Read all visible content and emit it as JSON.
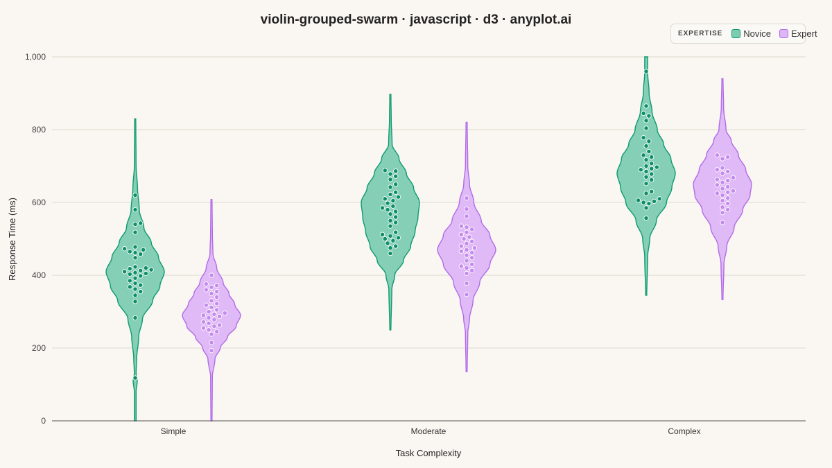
{
  "title": "violin-grouped-swarm · javascript · d3 · anyplot.ai",
  "colors": {
    "background": "#FAF7F2",
    "grid": "#DCD8CF",
    "axis": "#555555",
    "novice_fill": "#7DCCB2",
    "novice_stroke": "#0E9A70",
    "novice_dot": "#0E8F68",
    "expert_fill": "#DDB6F5",
    "expert_stroke": "#B26BE6",
    "expert_dot": "#C58AEE"
  },
  "legend": {
    "title": "EXPERTISE",
    "items": [
      {
        "label": "Novice",
        "fill": "#7DCCB2",
        "stroke": "#0E9A70"
      },
      {
        "label": "Expert",
        "fill": "#DDB6F5",
        "stroke": "#B26BE6"
      }
    ]
  },
  "chart_data": {
    "type": "violin",
    "title": "violin-grouped-swarm · javascript · d3 · anyplot.ai",
    "xlabel": "Task Complexity",
    "ylabel": "Response Time (ms)",
    "categories": [
      "Simple",
      "Moderate",
      "Complex"
    ],
    "groups": [
      "Novice",
      "Expert"
    ],
    "ylim": [
      0,
      1000
    ],
    "yticks": [
      0,
      200,
      400,
      600,
      800,
      1000
    ],
    "ytick_labels": [
      "0",
      "200",
      "400",
      "600",
      "800",
      "1,000"
    ],
    "grid": true,
    "legend_position": "top-right",
    "series": [
      {
        "name": "Novice",
        "category": "Simple",
        "range": [
          0,
          830
        ],
        "density": [
          [
            0,
            0.03
          ],
          [
            80,
            0.03
          ],
          [
            110,
            0.07
          ],
          [
            130,
            0.03
          ],
          [
            170,
            0.05
          ],
          [
            230,
            0.12
          ],
          [
            280,
            0.25
          ],
          [
            330,
            0.6
          ],
          [
            370,
            0.85
          ],
          [
            410,
            1.0
          ],
          [
            450,
            0.8
          ],
          [
            490,
            0.55
          ],
          [
            530,
            0.3
          ],
          [
            580,
            0.14
          ],
          [
            640,
            0.08
          ],
          [
            700,
            0.03
          ],
          [
            830,
            0.02
          ]
        ],
        "points": [
          118,
          283,
          328,
          345,
          355,
          362,
          368,
          373,
          378,
          385,
          392,
          398,
          403,
          405,
          407,
          410,
          413,
          415,
          418,
          420,
          423,
          448,
          458,
          462,
          465,
          470,
          473,
          478,
          518,
          540,
          543,
          580,
          620
        ]
      },
      {
        "name": "Expert",
        "category": "Simple",
        "range": [
          0,
          608
        ],
        "density": [
          [
            0,
            0.02
          ],
          [
            120,
            0.03
          ],
          [
            170,
            0.12
          ],
          [
            200,
            0.3
          ],
          [
            230,
            0.55
          ],
          [
            260,
            0.85
          ],
          [
            290,
            1.0
          ],
          [
            320,
            0.8
          ],
          [
            350,
            0.6
          ],
          [
            380,
            0.4
          ],
          [
            420,
            0.18
          ],
          [
            460,
            0.05
          ],
          [
            520,
            0.03
          ],
          [
            608,
            0.02
          ]
        ],
        "points": [
          193,
          215,
          238,
          245,
          250,
          255,
          260,
          263,
          268,
          272,
          278,
          283,
          287,
          290,
          293,
          296,
          300,
          305,
          312,
          318,
          322,
          330,
          340,
          350,
          355,
          360,
          367,
          372,
          376,
          400
        ]
      },
      {
        "name": "Novice",
        "category": "Moderate",
        "range": [
          250,
          897
        ],
        "density": [
          [
            250,
            0.02
          ],
          [
            360,
            0.05
          ],
          [
            400,
            0.15
          ],
          [
            440,
            0.45
          ],
          [
            480,
            0.7
          ],
          [
            520,
            0.85
          ],
          [
            560,
            0.95
          ],
          [
            600,
            1.0
          ],
          [
            640,
            0.8
          ],
          [
            680,
            0.55
          ],
          [
            720,
            0.3
          ],
          [
            760,
            0.06
          ],
          [
            830,
            0.03
          ],
          [
            897,
            0.02
          ]
        ],
        "points": [
          460,
          475,
          480,
          488,
          495,
          500,
          503,
          508,
          512,
          518,
          535,
          545,
          550,
          560,
          568,
          575,
          580,
          585,
          590,
          598,
          605,
          610,
          615,
          622,
          628,
          642,
          650,
          663,
          672,
          678,
          686,
          688
        ]
      },
      {
        "name": "Expert",
        "category": "Moderate",
        "range": [
          135,
          820
        ],
        "density": [
          [
            135,
            0.02
          ],
          [
            240,
            0.04
          ],
          [
            280,
            0.1
          ],
          [
            330,
            0.22
          ],
          [
            380,
            0.45
          ],
          [
            430,
            0.8
          ],
          [
            470,
            1.0
          ],
          [
            510,
            0.8
          ],
          [
            550,
            0.5
          ],
          [
            600,
            0.25
          ],
          [
            650,
            0.1
          ],
          [
            700,
            0.04
          ],
          [
            820,
            0.02
          ]
        ],
        "points": [
          347,
          378,
          405,
          413,
          420,
          425,
          430,
          440,
          448,
          455,
          462,
          466,
          470,
          475,
          480,
          487,
          493,
          500,
          505,
          512,
          518,
          526,
          532,
          535,
          562,
          582,
          612
        ]
      },
      {
        "name": "Novice",
        "category": "Complex",
        "range": [
          345,
          1000
        ],
        "density": [
          [
            345,
            0.02
          ],
          [
            450,
            0.05
          ],
          [
            500,
            0.12
          ],
          [
            550,
            0.35
          ],
          [
            600,
            0.7
          ],
          [
            640,
            0.88
          ],
          [
            680,
            1.0
          ],
          [
            720,
            0.85
          ],
          [
            760,
            0.6
          ],
          [
            800,
            0.38
          ],
          [
            850,
            0.2
          ],
          [
            900,
            0.1
          ],
          [
            960,
            0.05
          ],
          [
            1000,
            0.05
          ]
        ],
        "points": [
          557,
          585,
          597,
          600,
          603,
          606,
          610,
          625,
          630,
          652,
          662,
          670,
          678,
          685,
          690,
          693,
          697,
          700,
          707,
          717,
          725,
          730,
          740,
          755,
          768,
          778,
          804,
          825,
          838,
          845,
          865,
          960
        ]
      },
      {
        "name": "Expert",
        "category": "Complex",
        "range": [
          333,
          940
        ],
        "density": [
          [
            333,
            0.02
          ],
          [
            430,
            0.05
          ],
          [
            480,
            0.15
          ],
          [
            530,
            0.4
          ],
          [
            580,
            0.7
          ],
          [
            620,
            0.95
          ],
          [
            650,
            1.0
          ],
          [
            690,
            0.8
          ],
          [
            730,
            0.55
          ],
          [
            770,
            0.3
          ],
          [
            800,
            0.12
          ],
          [
            860,
            0.04
          ],
          [
            940,
            0.02
          ]
        ],
        "points": [
          545,
          572,
          580,
          587,
          597,
          605,
          612,
          620,
          625,
          628,
          632,
          638,
          643,
          648,
          655,
          660,
          663,
          668,
          680,
          685,
          690,
          695,
          720,
          725,
          730
        ]
      }
    ]
  }
}
